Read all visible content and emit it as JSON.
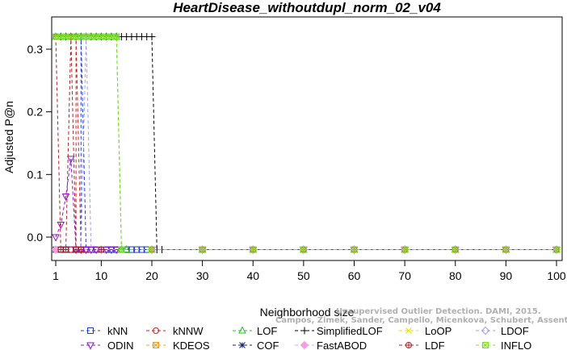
{
  "chart_data": {
    "type": "line",
    "title": "HeartDisease_withoutdupl_norm_02_v04",
    "xlabel": "Neighborhood size",
    "ylabel": "Adjusted P@n",
    "xlim": [
      1,
      100
    ],
    "ylim": [
      -0.02,
      0.32
    ],
    "xticks": [
      "1",
      "10",
      "20",
      "30",
      "40",
      "50",
      "60",
      "70",
      "80",
      "90",
      "100"
    ],
    "yticks": [
      "0.0",
      "0.1",
      "0.2",
      "0.3"
    ],
    "grid": false,
    "legend_position": "bottom",
    "series": [
      {
        "name": "kNN",
        "color": "#1f3fd0",
        "marker": "square",
        "line": [
          [
            1,
            -0.02
          ],
          [
            2,
            -0.02
          ],
          [
            3,
            -0.02
          ],
          [
            4,
            -0.02
          ],
          [
            5,
            -0.02
          ],
          [
            6,
            -0.02
          ],
          [
            6,
            0.32
          ],
          [
            7,
            -0.02
          ],
          [
            8,
            -0.02
          ],
          [
            9,
            -0.02
          ],
          [
            10,
            -0.02
          ],
          [
            11,
            -0.02
          ],
          [
            12,
            -0.02
          ],
          [
            13,
            -0.02
          ],
          [
            14,
            -0.02
          ],
          [
            15,
            -0.02
          ],
          [
            16,
            -0.02
          ],
          [
            17,
            -0.02
          ],
          [
            18,
            -0.02
          ],
          [
            19,
            -0.02
          ],
          [
            20,
            -0.02
          ],
          [
            30,
            -0.02
          ],
          [
            40,
            -0.02
          ],
          [
            50,
            -0.02
          ],
          [
            60,
            -0.02
          ],
          [
            70,
            -0.02
          ],
          [
            80,
            -0.02
          ],
          [
            90,
            -0.02
          ],
          [
            100,
            -0.02
          ]
        ]
      },
      {
        "name": "kNNW",
        "color": "#d02020",
        "marker": "circle",
        "line": [
          [
            1,
            -0.02
          ],
          [
            2,
            -0.02
          ],
          [
            3,
            -0.02
          ],
          [
            4,
            -0.02
          ],
          [
            5,
            -0.02
          ],
          [
            5,
            0.32
          ],
          [
            6,
            -0.02
          ],
          [
            7,
            -0.02
          ],
          [
            8,
            -0.02
          ],
          [
            9,
            -0.02
          ],
          [
            10,
            -0.02
          ],
          [
            20,
            -0.02
          ],
          [
            30,
            -0.02
          ],
          [
            40,
            -0.02
          ],
          [
            50,
            -0.02
          ],
          [
            60,
            -0.02
          ],
          [
            70,
            -0.02
          ],
          [
            80,
            -0.02
          ],
          [
            90,
            -0.02
          ],
          [
            100,
            -0.02
          ]
        ]
      },
      {
        "name": "LOF",
        "color": "#22c022",
        "marker": "triangle",
        "line": [
          [
            1,
            0.32
          ],
          [
            2,
            0.32
          ],
          [
            3,
            0.32
          ],
          [
            4,
            0.32
          ],
          [
            5,
            0.32
          ],
          [
            6,
            0.32
          ],
          [
            7,
            0.32
          ],
          [
            8,
            0.32
          ],
          [
            9,
            0.32
          ],
          [
            10,
            0.32
          ],
          [
            11,
            0.32
          ],
          [
            12,
            0.32
          ],
          [
            13,
            0.32
          ],
          [
            14,
            -0.02
          ],
          [
            15,
            -0.02
          ],
          [
            20,
            -0.02
          ],
          [
            30,
            -0.02
          ],
          [
            40,
            -0.02
          ],
          [
            50,
            -0.02
          ],
          [
            60,
            -0.02
          ],
          [
            70,
            -0.02
          ],
          [
            80,
            -0.02
          ],
          [
            90,
            -0.02
          ],
          [
            100,
            -0.02
          ]
        ]
      },
      {
        "name": "SimplifiedLOF",
        "color": "#000000",
        "marker": "plus",
        "line": [
          [
            2,
            0.32
          ],
          [
            3,
            0.32
          ],
          [
            4,
            0.32
          ],
          [
            5,
            0.32
          ],
          [
            6,
            0.32
          ],
          [
            7,
            0.32
          ],
          [
            8,
            0.32
          ],
          [
            9,
            0.32
          ],
          [
            10,
            0.32
          ],
          [
            11,
            0.32
          ],
          [
            12,
            0.32
          ],
          [
            13,
            0.32
          ],
          [
            14,
            0.32
          ],
          [
            15,
            0.32
          ],
          [
            16,
            0.32
          ],
          [
            17,
            0.32
          ],
          [
            18,
            0.32
          ],
          [
            19,
            0.32
          ],
          [
            20,
            0.32
          ],
          [
            21,
            -0.02
          ],
          [
            22,
            -0.02
          ],
          [
            30,
            -0.02
          ],
          [
            40,
            -0.02
          ],
          [
            50,
            -0.02
          ],
          [
            60,
            -0.02
          ],
          [
            70,
            -0.02
          ],
          [
            80,
            -0.02
          ],
          [
            90,
            -0.02
          ],
          [
            100,
            -0.02
          ]
        ]
      },
      {
        "name": "LoOP",
        "color": "#e8e000",
        "marker": "x",
        "line": [
          [
            1,
            -0.02
          ],
          [
            10,
            -0.02
          ],
          [
            20,
            -0.02
          ],
          [
            30,
            -0.02
          ],
          [
            40,
            -0.02
          ],
          [
            50,
            -0.02
          ],
          [
            60,
            -0.02
          ],
          [
            70,
            -0.02
          ],
          [
            80,
            -0.02
          ],
          [
            90,
            -0.02
          ],
          [
            100,
            -0.02
          ]
        ]
      },
      {
        "name": "LDOF",
        "color": "#a0a0e8",
        "marker": "diamond",
        "line": [
          [
            1,
            -0.02
          ],
          [
            6,
            -0.02
          ],
          [
            7,
            0.32
          ],
          [
            8,
            -0.02
          ],
          [
            10,
            -0.02
          ],
          [
            20,
            -0.02
          ],
          [
            30,
            -0.02
          ],
          [
            40,
            -0.02
          ],
          [
            50,
            -0.02
          ],
          [
            60,
            -0.02
          ],
          [
            70,
            -0.02
          ],
          [
            80,
            -0.02
          ],
          [
            90,
            -0.02
          ],
          [
            100,
            -0.02
          ]
        ]
      },
      {
        "name": "ODIN",
        "color": "#9010d0",
        "marker": "triangle-down",
        "line": [
          [
            1,
            0.0
          ],
          [
            2,
            0.02
          ],
          [
            3,
            0.065
          ],
          [
            4,
            0.125
          ],
          [
            5,
            -0.02
          ],
          [
            6,
            -0.02
          ],
          [
            7,
            -0.02
          ],
          [
            8,
            -0.02
          ],
          [
            9,
            -0.02
          ],
          [
            10,
            -0.02
          ],
          [
            11,
            -0.02
          ],
          [
            12,
            -0.02
          ],
          [
            13,
            -0.02
          ],
          [
            20,
            -0.02
          ],
          [
            30,
            -0.02
          ],
          [
            40,
            -0.02
          ],
          [
            50,
            -0.02
          ],
          [
            60,
            -0.02
          ],
          [
            70,
            -0.02
          ],
          [
            80,
            -0.02
          ],
          [
            90,
            -0.02
          ],
          [
            100,
            -0.02
          ]
        ]
      },
      {
        "name": "KDEOS",
        "color": "#f0a020",
        "marker": "square-x",
        "line": [
          [
            1,
            -0.02
          ],
          [
            10,
            -0.02
          ],
          [
            20,
            -0.02
          ],
          [
            30,
            -0.02
          ],
          [
            40,
            -0.02
          ],
          [
            50,
            -0.02
          ],
          [
            60,
            -0.02
          ],
          [
            70,
            -0.02
          ],
          [
            80,
            -0.02
          ],
          [
            90,
            -0.02
          ],
          [
            100,
            -0.02
          ]
        ]
      },
      {
        "name": "COF",
        "color": "#102070",
        "marker": "asterisk",
        "line": [
          [
            1,
            -0.02
          ],
          [
            10,
            -0.02
          ],
          [
            20,
            -0.02
          ],
          [
            30,
            -0.02
          ],
          [
            40,
            -0.02
          ],
          [
            50,
            -0.02
          ],
          [
            60,
            -0.02
          ],
          [
            70,
            -0.02
          ],
          [
            80,
            -0.02
          ],
          [
            90,
            -0.02
          ],
          [
            100,
            -0.02
          ]
        ]
      },
      {
        "name": "FastABOD",
        "color": "#f0a0e0",
        "marker": "diamond-filled",
        "line": [
          [
            1,
            -0.02
          ],
          [
            10,
            -0.02
          ],
          [
            20,
            -0.02
          ],
          [
            30,
            -0.02
          ],
          [
            40,
            -0.02
          ],
          [
            50,
            -0.02
          ],
          [
            60,
            -0.02
          ],
          [
            70,
            -0.02
          ],
          [
            80,
            -0.02
          ],
          [
            90,
            -0.02
          ],
          [
            100,
            -0.02
          ]
        ]
      },
      {
        "name": "LDF",
        "color": "#b02020",
        "marker": "circle-plus",
        "line": [
          [
            1,
            0.32
          ],
          [
            2,
            -0.02
          ],
          [
            3,
            -0.02
          ],
          [
            4,
            0.32
          ],
          [
            5,
            -0.02
          ],
          [
            6,
            -0.02
          ],
          [
            10,
            -0.02
          ],
          [
            20,
            -0.02
          ],
          [
            30,
            -0.02
          ],
          [
            40,
            -0.02
          ],
          [
            50,
            -0.02
          ],
          [
            60,
            -0.02
          ],
          [
            70,
            -0.02
          ],
          [
            80,
            -0.02
          ],
          [
            90,
            -0.02
          ],
          [
            100,
            -0.02
          ]
        ]
      },
      {
        "name": "INFLO",
        "color": "#80e020",
        "marker": "square-star",
        "line": [
          [
            1,
            0.32
          ],
          [
            2,
            0.32
          ],
          [
            3,
            0.32
          ],
          [
            4,
            0.32
          ],
          [
            5,
            0.32
          ],
          [
            6,
            0.32
          ],
          [
            7,
            0.32
          ],
          [
            8,
            0.32
          ],
          [
            9,
            0.32
          ],
          [
            10,
            0.32
          ],
          [
            11,
            0.32
          ],
          [
            12,
            0.32
          ],
          [
            13,
            0.32
          ],
          [
            14,
            -0.02
          ],
          [
            20,
            -0.02
          ],
          [
            30,
            -0.02
          ],
          [
            40,
            -0.02
          ],
          [
            50,
            -0.02
          ],
          [
            60,
            -0.02
          ],
          [
            70,
            -0.02
          ],
          [
            80,
            -0.02
          ],
          [
            90,
            -0.02
          ],
          [
            100,
            -0.02
          ]
        ]
      }
    ]
  },
  "watermark": {
    "line1": "Unsupervised Outlier Detection. DAMI, 2015.",
    "line2": "Campos, Zimek, Sander, Campello, Micenkova, Schubert, Assent, Houle"
  }
}
